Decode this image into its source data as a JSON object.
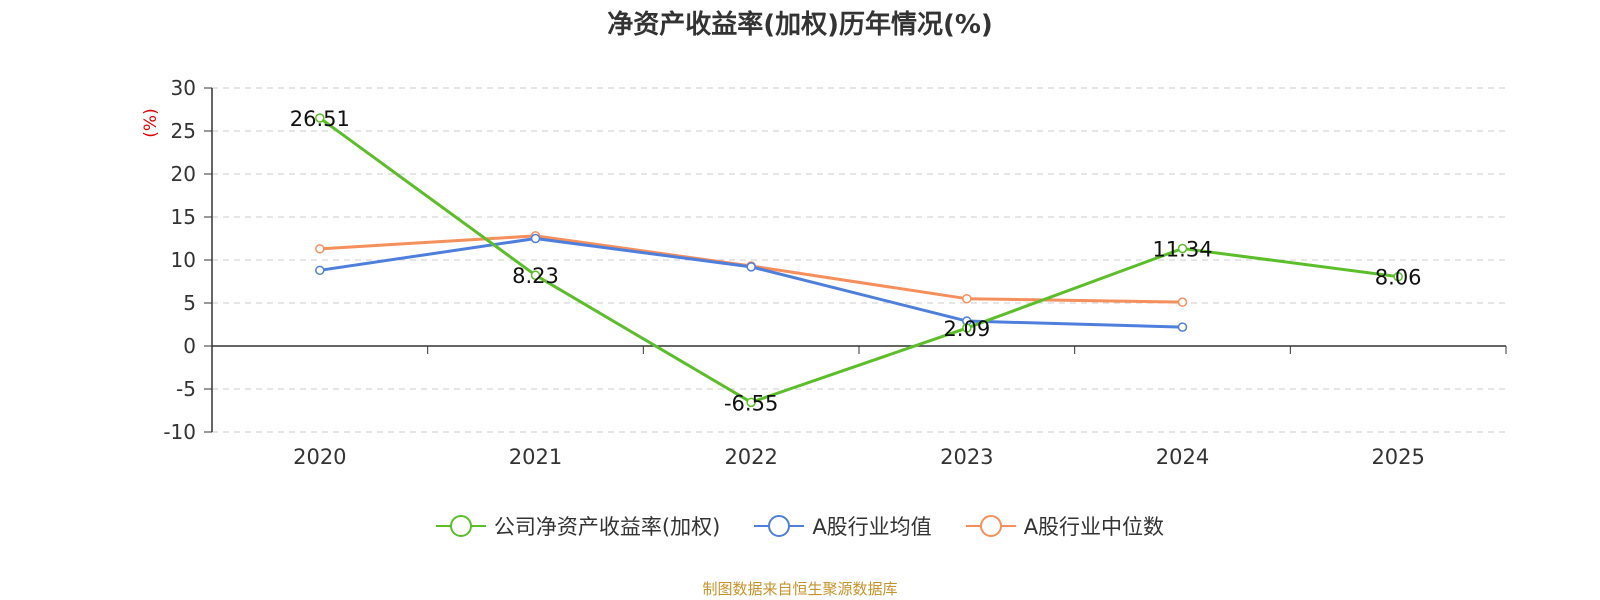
{
  "colors": {
    "company": "#5cbf29",
    "industry_mean": "#4f7fdc",
    "industry_median": "#f58f5c",
    "ylabel": "#e00000",
    "source": "#c8932a"
  },
  "source_text": "制图数据来自恒生聚源数据库",
  "chart_data": {
    "type": "line",
    "title": "净资产收益率(加权)历年情况(%)",
    "xlabel": "",
    "ylabel": "(%)",
    "categories": [
      "2020",
      "2021",
      "2022",
      "2023",
      "2024",
      "2025"
    ],
    "ylim": [
      -10,
      30
    ],
    "yticks": [
      "30",
      "25",
      "20",
      "15",
      "10",
      "5",
      "0",
      "-5",
      "-10"
    ],
    "grid": true,
    "legend_position": "bottom",
    "series": [
      {
        "name": "公司净资产收益率(加权)",
        "values": [
          26.51,
          8.23,
          -6.55,
          2.09,
          11.34,
          8.06
        ],
        "labels": [
          "26.51",
          "8.23",
          "-6.55",
          "2.09",
          "11.34",
          "8.06"
        ]
      },
      {
        "name": "A股行业均值",
        "values": [
          8.8,
          12.5,
          9.2,
          2.9,
          2.2,
          null
        ]
      },
      {
        "name": "A股行业中位数",
        "values": [
          11.3,
          12.8,
          9.3,
          5.5,
          5.1,
          null
        ]
      }
    ]
  }
}
